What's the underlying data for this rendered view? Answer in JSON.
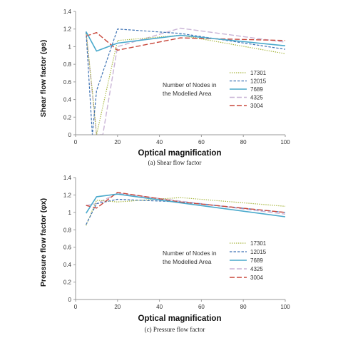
{
  "colors": {
    "17301": "#a6b53a",
    "12015": "#3d72b4",
    "7689": "#49a9cc",
    "4325": "#c9b4d6",
    "3004": "#c8463a",
    "axis": "#9a9a9a"
  },
  "chart_data": [
    {
      "type": "line",
      "xlabel": "Optical magnification",
      "ylabel": "Shear flow factor (φs)",
      "caption": "(a)  Shear flow factor",
      "legend_title": [
        "Number of Nodes in",
        "the Modelled Area"
      ],
      "legend_position": "right",
      "xlim": [
        0,
        100
      ],
      "ylim": [
        0,
        1.4
      ],
      "xticks": [
        "0",
        "20",
        "40",
        "60",
        "80",
        "100"
      ],
      "yticks": [
        "0",
        "0.2",
        "0.4",
        "0.6",
        "0.8",
        "1",
        "1.2",
        "1.4"
      ],
      "grid": false,
      "series": [
        {
          "name": "17301",
          "style": "dotted",
          "x": [
            5,
            8,
            10,
            20,
            50,
            100
          ],
          "y": [
            1.17,
            0.5,
            0.0,
            1.07,
            1.13,
            0.92
          ]
        },
        {
          "name": "12015",
          "style": "dashed",
          "x": [
            5,
            8,
            10,
            20,
            50,
            100
          ],
          "y": [
            1.17,
            0.0,
            0.5,
            1.2,
            1.15,
            0.97
          ]
        },
        {
          "name": "7689",
          "style": "solid",
          "x": [
            5,
            10,
            20,
            50,
            100
          ],
          "y": [
            1.17,
            0.95,
            1.04,
            1.13,
            1.01
          ]
        },
        {
          "name": "4325",
          "style": "longdash",
          "x": [
            5,
            10,
            13,
            20,
            50,
            100
          ],
          "y": [
            1.17,
            0.0,
            0.0,
            1.0,
            1.21,
            1.05
          ]
        },
        {
          "name": "3004",
          "style": "longdash",
          "x": [
            5,
            10,
            20,
            50,
            100
          ],
          "y": [
            1.12,
            1.16,
            0.96,
            1.1,
            1.07
          ]
        }
      ]
    },
    {
      "type": "line",
      "xlabel": "Optical magnification",
      "ylabel": "Pressure flow factor (φx)",
      "caption": "(c)  Pressure flow factor",
      "legend_title": [
        "Number of Nodes in",
        "the Modelled Area"
      ],
      "legend_position": "right",
      "xlim": [
        0,
        100
      ],
      "ylim": [
        0,
        1.4
      ],
      "xticks": [
        "0",
        "20",
        "40",
        "60",
        "80",
        "100"
      ],
      "yticks": [
        "0",
        "0.2",
        "0.4",
        "0.6",
        "0.8",
        "1",
        "1.2",
        "1.4"
      ],
      "grid": false,
      "series": [
        {
          "name": "17301",
          "style": "dotted",
          "x": [
            5,
            10,
            20,
            50,
            100
          ],
          "y": [
            0.85,
            1.14,
            1.12,
            1.17,
            1.07
          ]
        },
        {
          "name": "12015",
          "style": "dashed",
          "x": [
            5,
            10,
            20,
            50,
            100
          ],
          "y": [
            0.86,
            1.1,
            1.15,
            1.12,
            1.0
          ]
        },
        {
          "name": "7689",
          "style": "solid",
          "x": [
            5,
            10,
            20,
            50,
            100
          ],
          "y": [
            0.99,
            1.18,
            1.21,
            1.11,
            0.95
          ]
        },
        {
          "name": "4325",
          "style": "longdash",
          "x": [
            5,
            10,
            20,
            50,
            100
          ],
          "y": [
            1.08,
            1.1,
            1.22,
            1.13,
            0.98
          ]
        },
        {
          "name": "3004",
          "style": "longdash",
          "x": [
            5,
            10,
            20,
            50,
            100
          ],
          "y": [
            1.08,
            1.05,
            1.23,
            1.12,
            1.0
          ]
        }
      ]
    }
  ]
}
